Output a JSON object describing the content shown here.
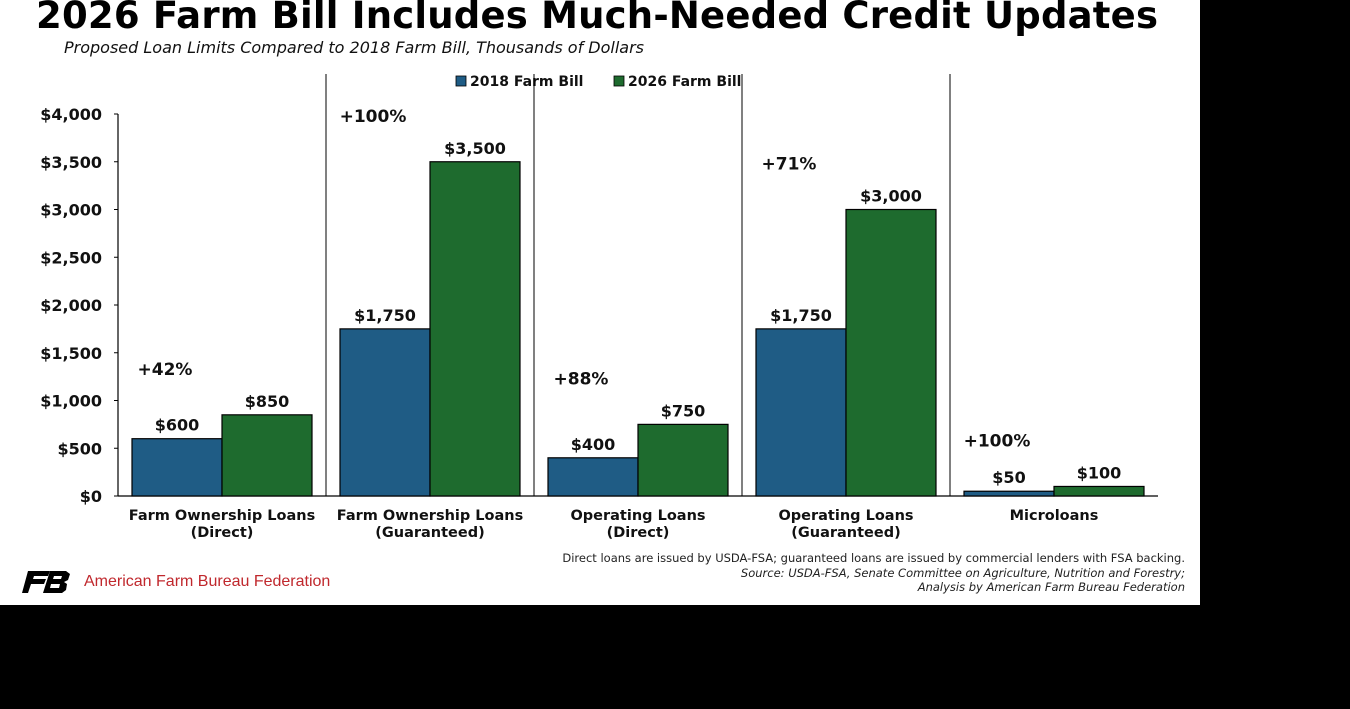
{
  "header": {
    "title": "2026 Farm Bill Includes Much-Needed Credit Updates",
    "subtitle": "Proposed Loan Limits Compared to 2018 Farm Bill, Thousands of Dollars"
  },
  "chart_data": {
    "type": "bar",
    "title": "2026 Farm Bill Includes Much-Needed Credit Updates",
    "subtitle": "Proposed Loan Limits Compared to 2018 Farm Bill, Thousands of Dollars",
    "categories": [
      [
        "Farm Ownership Loans",
        "(Direct)"
      ],
      [
        "Farm Ownership Loans",
        "(Guaranteed)"
      ],
      [
        "Operating Loans",
        "(Direct)"
      ],
      [
        "Operating Loans",
        "(Guaranteed)"
      ],
      [
        "Microloans"
      ]
    ],
    "series": [
      {
        "name": "2018 Farm Bill",
        "color": "#1f5c85",
        "values": [
          600,
          1750,
          400,
          1750,
          50
        ],
        "labels": [
          "$600",
          "$1,750",
          "$400",
          "$1,750",
          "$50"
        ]
      },
      {
        "name": "2026 Farm Bill",
        "color": "#1e6b2e",
        "values": [
          850,
          3500,
          750,
          3000,
          100
        ],
        "labels": [
          "$850",
          "$3,500",
          "$750",
          "$3,000",
          "$100"
        ]
      }
    ],
    "change_labels": [
      "+42%",
      "+100%",
      "+88%",
      "+71%",
      "+100%"
    ],
    "yticks": [
      0,
      500,
      1000,
      1500,
      2000,
      2500,
      3000,
      3500,
      4000
    ],
    "ytick_labels": [
      "$0",
      "$500",
      "$1,000",
      "$1,500",
      "$2,000",
      "$2,500",
      "$3,000",
      "$3,500",
      "$4,000"
    ],
    "ylim": [
      0,
      4000
    ],
    "xlabel": "",
    "ylabel": "",
    "grid": false,
    "legend_position": "top-center"
  },
  "footnote": {
    "line1": "Direct loans are issued by USDA-FSA; guaranteed loans are issued by commercial lenders with FSA backing.",
    "line2": "Source: USDA-FSA, Senate Committee on Agriculture, Nutrition and Forestry;",
    "line3": "Analysis by American Farm Bureau Federation"
  },
  "logo": {
    "mark_color": "#000000",
    "name": "American Farm Bureau Federation",
    "name_color": "#c0282d"
  }
}
